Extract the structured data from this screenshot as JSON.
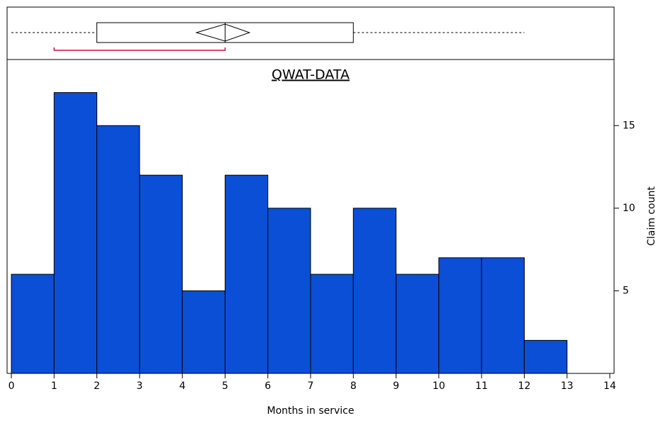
{
  "chart_data": {
    "type": "histogram",
    "title": "QWAT-DATA",
    "x_label": "Months in service",
    "y_label": "Claim count",
    "bins": [
      0,
      1,
      2,
      3,
      4,
      5,
      6,
      7,
      8,
      9,
      10,
      11,
      12,
      13
    ],
    "values": [
      6,
      17,
      15,
      12,
      5,
      12,
      10,
      6,
      10,
      6,
      7,
      7,
      2
    ],
    "color": "#0a4fd6",
    "xlim": [
      -0.1,
      14.1
    ],
    "xticks": [
      0,
      1,
      2,
      3,
      4,
      5,
      6,
      7,
      8,
      9,
      10,
      11,
      12,
      13,
      14
    ],
    "ylim": [
      0,
      19
    ],
    "yticks": [
      5,
      10,
      15
    ],
    "box": {
      "whisker_low": 0,
      "q1": 2,
      "median": 5,
      "q3": 8,
      "whisker_high": 12,
      "mean": 5,
      "mean_ci": [
        4.33,
        5.57
      ],
      "shortest_half": [
        1,
        5
      ],
      "shortest_half_color": "#c8143c"
    }
  }
}
